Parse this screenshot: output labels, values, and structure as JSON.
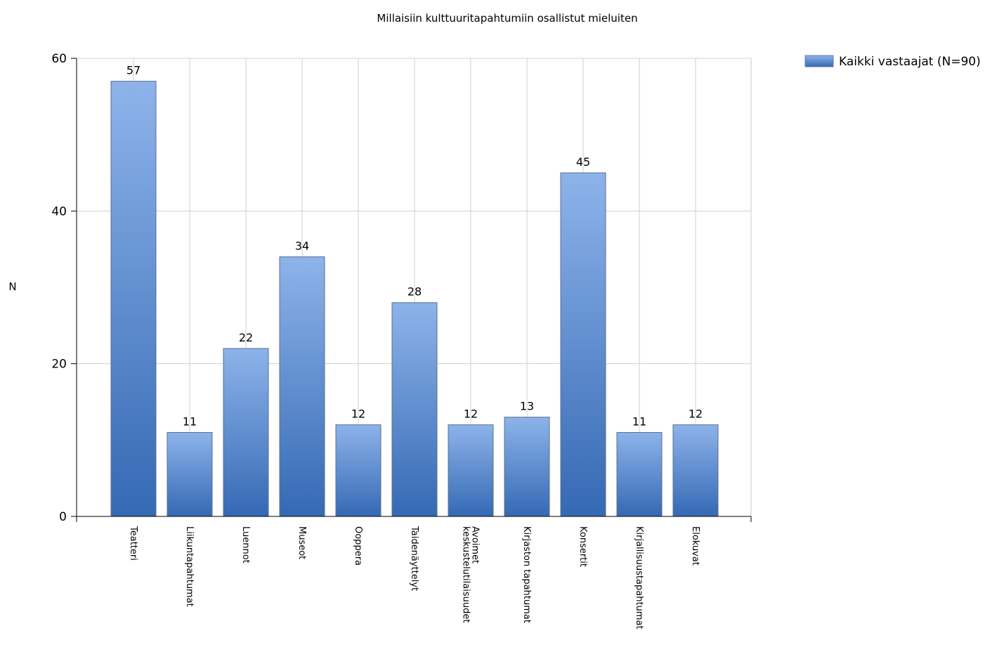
{
  "chart_data": {
    "type": "bar",
    "title": "Millaisiin kulttuuritapahtumiin osallistut mieluiten",
    "xlabel": "",
    "ylabel": "N",
    "ylim": [
      0,
      60
    ],
    "yticks": [
      0,
      20,
      40,
      60
    ],
    "grid": true,
    "legend_position": "top-right",
    "categories": [
      "Teatteri",
      "Liikuntapahtumat",
      "Luennot",
      "Museot",
      "Ooppera",
      "Taidenäyttelyt",
      "Avoimet keskustelutilaisuudet",
      "Kirjaston tapahtumat",
      "Konsertit",
      "Kirjallisuustapahtumat",
      "Elokuvat"
    ],
    "series": [
      {
        "name": "Kaikki vastaajat (N=90)",
        "color": "#4f81c8",
        "values": [
          57,
          11,
          22,
          34,
          12,
          28,
          12,
          13,
          45,
          11,
          12
        ]
      }
    ]
  }
}
